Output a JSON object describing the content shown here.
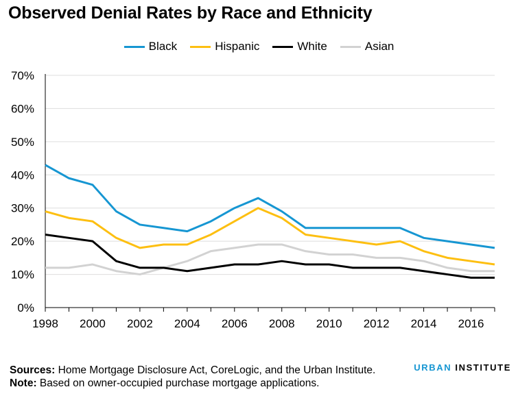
{
  "chart_data": {
    "type": "line",
    "title": "Observed Denial Rates by Race and Ethnicity",
    "x": [
      1998,
      1999,
      2000,
      2001,
      2002,
      2003,
      2004,
      2005,
      2006,
      2007,
      2008,
      2009,
      2010,
      2011,
      2012,
      2013,
      2014,
      2015,
      2016,
      2017
    ],
    "x_tick_labels": [
      "1998",
      "2000",
      "2002",
      "2004",
      "2006",
      "2008",
      "2010",
      "2012",
      "2014",
      "2016"
    ],
    "y_tick_labels": [
      "0%",
      "10%",
      "20%",
      "30%",
      "40%",
      "50%",
      "60%",
      "70%"
    ],
    "xlim": [
      1998,
      2017
    ],
    "ylim": [
      0,
      70
    ],
    "grid": "horizontal",
    "legend_position": "top-center",
    "series": [
      {
        "name": "Black",
        "color": "#1696d2",
        "values": [
          43,
          39,
          37,
          29,
          25,
          24,
          23,
          26,
          30,
          33,
          29,
          24,
          24,
          24,
          24,
          24,
          21,
          20,
          19,
          18
        ]
      },
      {
        "name": "Hispanic",
        "color": "#fdbf11",
        "values": [
          29,
          27,
          26,
          21,
          18,
          19,
          19,
          22,
          26,
          30,
          27,
          22,
          21,
          20,
          19,
          20,
          17,
          15,
          14,
          13
        ]
      },
      {
        "name": "White",
        "color": "#000000",
        "values": [
          22,
          21,
          20,
          14,
          12,
          12,
          11,
          12,
          13,
          13,
          14,
          13,
          13,
          12,
          12,
          12,
          11,
          10,
          9,
          9
        ]
      },
      {
        "name": "Asian",
        "color": "#d2d2d2",
        "values": [
          12,
          12,
          13,
          11,
          10,
          12,
          14,
          17,
          18,
          19,
          19,
          17,
          16,
          16,
          15,
          15,
          14,
          12,
          11,
          11
        ]
      }
    ]
  },
  "footer": {
    "sources_label": "Sources:",
    "sources_text": "Home Mortgage Disclosure Act, CoreLogic, and the Urban Institute.",
    "note_label": "Note:",
    "note_text": "Based on owner-occupied purchase mortgage applications."
  },
  "brand": {
    "part1": "URBAN",
    "part2": "INSTITUTE"
  }
}
